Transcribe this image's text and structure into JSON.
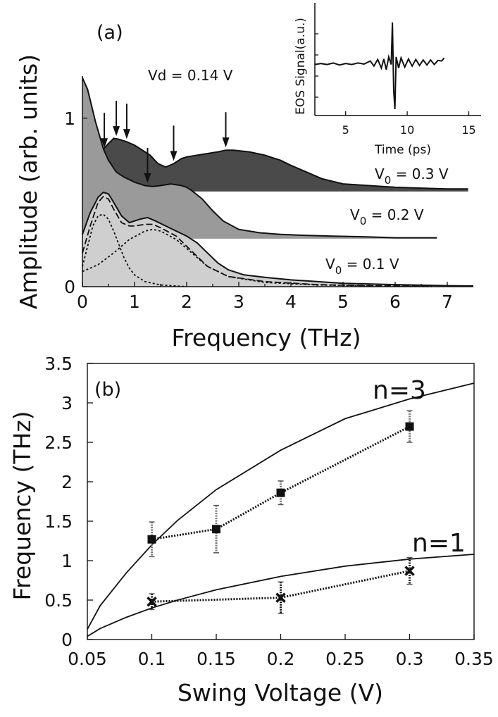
{
  "chart_data": [
    {
      "panel_label": "(a)",
      "type": "area",
      "xlabel": "Frequency (THz)",
      "ylabel": "Amplitude (arb. units)",
      "xlim": [
        0,
        7.5
      ],
      "ylim": [
        0,
        1.25
      ],
      "xticks": [
        "0",
        "1",
        "2",
        "3",
        "4",
        "5",
        "6",
        "7"
      ],
      "yticks": [
        "0",
        "1"
      ],
      "annotation": "Vd = 0.14 V",
      "series": [
        {
          "name": "V0 = 0.3 V",
          "label_parts": [
            "V",
            "0",
            " = 0.3 V"
          ],
          "baseline": 0.565,
          "color": "#4a4a4a",
          "x": [
            0,
            0.15,
            0.3,
            0.5,
            0.6,
            0.7,
            0.85,
            1.0,
            1.1,
            1.3,
            1.45,
            1.6,
            1.75,
            1.9,
            2.0,
            2.2,
            2.4,
            2.6,
            2.75,
            2.9,
            3.2,
            3.5,
            3.8,
            4.0,
            4.3,
            4.6,
            5.0,
            5.5,
            6.0,
            6.5,
            7.0,
            7.4
          ],
          "y": [
            0.77,
            0.75,
            0.78,
            0.85,
            0.88,
            0.875,
            0.86,
            0.84,
            0.82,
            0.78,
            0.73,
            0.71,
            0.73,
            0.76,
            0.77,
            0.78,
            0.79,
            0.8,
            0.81,
            0.81,
            0.8,
            0.78,
            0.75,
            0.72,
            0.68,
            0.64,
            0.61,
            0.6,
            0.59,
            0.585,
            0.58,
            0.58
          ]
        },
        {
          "name": "V0 = 0.2 V",
          "label_parts": [
            "V",
            "0",
            " = 0.2 V"
          ],
          "baseline": 0.285,
          "color": "#9a9a9a",
          "x": [
            0,
            0.1,
            0.25,
            0.4,
            0.5,
            0.65,
            0.8,
            1.0,
            1.2,
            1.35,
            1.5,
            1.7,
            1.9,
            2.0,
            2.1,
            2.3,
            2.5,
            2.7,
            3.0,
            3.4,
            3.8,
            4.2,
            4.8,
            5.5,
            6.0,
            6.5,
            6.8
          ],
          "y": [
            1.24,
            1.17,
            0.98,
            0.82,
            0.75,
            0.68,
            0.65,
            0.62,
            0.6,
            0.595,
            0.6,
            0.61,
            0.6,
            0.59,
            0.57,
            0.52,
            0.45,
            0.39,
            0.34,
            0.32,
            0.31,
            0.305,
            0.3,
            0.295,
            0.29,
            0.29,
            0.29
          ]
        },
        {
          "name": "V0 = 0.1 V",
          "label_parts": [
            "V",
            "0",
            " = 0.1 V"
          ],
          "baseline": 0.0,
          "color": "#cfcfcf",
          "x": [
            0,
            0.15,
            0.3,
            0.4,
            0.5,
            0.6,
            0.75,
            0.9,
            1.1,
            1.25,
            1.4,
            1.6,
            1.8,
            2.0,
            2.2,
            2.4,
            2.6,
            2.8,
            3.1,
            3.5,
            4.0,
            4.5,
            5.0,
            6.0,
            7.0,
            7.5
          ],
          "y": [
            0.31,
            0.44,
            0.53,
            0.56,
            0.55,
            0.5,
            0.42,
            0.38,
            0.4,
            0.41,
            0.39,
            0.36,
            0.33,
            0.3,
            0.26,
            0.2,
            0.14,
            0.1,
            0.07,
            0.055,
            0.04,
            0.03,
            0.02,
            0.012,
            0.006,
            0.004
          ]
        }
      ],
      "fit_curves": [
        {
          "name": "peak1",
          "style": "dotted",
          "x": [
            0,
            0.1,
            0.2,
            0.3,
            0.4,
            0.5,
            0.6,
            0.7,
            0.8,
            0.9,
            1.0,
            1.2,
            1.5,
            2.0
          ],
          "y": [
            0.12,
            0.24,
            0.36,
            0.42,
            0.43,
            0.4,
            0.33,
            0.25,
            0.17,
            0.11,
            0.07,
            0.03,
            0.01,
            0.0
          ]
        },
        {
          "name": "peak2",
          "style": "dotted",
          "x": [
            0,
            0.3,
            0.6,
            0.9,
            1.2,
            1.35,
            1.5,
            1.8,
            2.1,
            2.4,
            2.8,
            3.5,
            4.5,
            5.5,
            6.7
          ],
          "y": [
            0.09,
            0.13,
            0.2,
            0.28,
            0.33,
            0.34,
            0.33,
            0.28,
            0.2,
            0.12,
            0.06,
            0.025,
            0.01,
            0.004,
            0.0
          ]
        },
        {
          "name": "sum",
          "style": "dashed",
          "x": [
            0,
            0.15,
            0.3,
            0.4,
            0.5,
            0.6,
            0.75,
            0.9,
            1.0,
            1.2,
            1.35,
            1.5,
            1.8,
            2.1,
            2.4,
            2.8,
            3.5,
            4.5,
            5.5,
            6.7
          ],
          "y": [
            0.2,
            0.36,
            0.5,
            0.535,
            0.52,
            0.46,
            0.38,
            0.36,
            0.36,
            0.37,
            0.37,
            0.35,
            0.3,
            0.21,
            0.12,
            0.06,
            0.03,
            0.012,
            0.006,
            0.002
          ]
        }
      ],
      "arrows_x": [
        {
          "series": "V0 = 0.3 V",
          "x": [
            0.65,
            0.85,
            1.75,
            2.75
          ]
        },
        {
          "series": "V0 = 0.2 V",
          "x": [
            0.42,
            1.25
          ]
        }
      ],
      "inset": {
        "type": "line",
        "xlabel": "Time (ps)",
        "ylabel": "EOS  Signal(a.u.)",
        "xlim": [
          2.5,
          16
        ],
        "ylim": [
          -1,
          1
        ],
        "xticks": [
          "5",
          "10",
          "15"
        ],
        "x": [
          2.5,
          3.0,
          3.5,
          4.0,
          4.5,
          5.0,
          5.5,
          6.0,
          6.5,
          7.0,
          7.3,
          7.6,
          7.9,
          8.1,
          8.3,
          8.5,
          8.7,
          8.8,
          8.9,
          9.0,
          9.1,
          9.3,
          9.5,
          9.8,
          10.1,
          10.4,
          10.7,
          11.0,
          11.3,
          11.6,
          11.9,
          12.2,
          12.5,
          12.8,
          13.0
        ],
        "y": [
          -0.05,
          -0.03,
          -0.05,
          -0.02,
          -0.06,
          -0.03,
          -0.05,
          -0.02,
          -0.04,
          0.02,
          -0.08,
          0.05,
          -0.12,
          0.06,
          -0.15,
          0.1,
          -0.05,
          0.78,
          -0.55,
          -0.93,
          0.1,
          -0.12,
          0.08,
          -0.1,
          0.06,
          -0.08,
          0.05,
          -0.07,
          0.04,
          -0.06,
          0.04,
          -0.05,
          0.03,
          0.02,
          0.08
        ]
      }
    },
    {
      "panel_label": "(b)",
      "type": "scatter",
      "xlabel": "Swing Voltage (V)",
      "ylabel": "Frequency (THz)",
      "xlim": [
        0.05,
        0.35
      ],
      "ylim": [
        0,
        3.5
      ],
      "xticks": [
        "0.05",
        "0.1",
        "0.15",
        "0.2",
        "0.25",
        "0.3",
        "0.35"
      ],
      "yticks": [
        "0",
        "0.5",
        "1",
        "1.5",
        "2",
        "2.5",
        "3",
        "3.5"
      ],
      "series": [
        {
          "name": "n=3",
          "marker": "square",
          "x": [
            0.1,
            0.15,
            0.2,
            0.3
          ],
          "y": [
            1.27,
            1.4,
            1.86,
            2.7
          ],
          "err": [
            0.22,
            0.3,
            0.15,
            0.2
          ]
        },
        {
          "name": "n=1",
          "marker": "x",
          "x": [
            0.1,
            0.2,
            0.3
          ],
          "y": [
            0.48,
            0.53,
            0.87
          ],
          "err": [
            0.1,
            0.2,
            0.17
          ]
        }
      ],
      "theory_curves": [
        {
          "name": "n=3 theory",
          "x": [
            0.05,
            0.06,
            0.08,
            0.1,
            0.12,
            0.15,
            0.2,
            0.25,
            0.3,
            0.35
          ],
          "y": [
            0.13,
            0.43,
            0.84,
            1.2,
            1.51,
            1.9,
            2.4,
            2.8,
            3.05,
            3.25
          ]
        },
        {
          "name": "n=1 theory",
          "x": [
            0.05,
            0.06,
            0.08,
            0.1,
            0.12,
            0.15,
            0.2,
            0.25,
            0.3,
            0.35
          ],
          "y": [
            0.04,
            0.14,
            0.28,
            0.4,
            0.5,
            0.63,
            0.8,
            0.93,
            1.02,
            1.08
          ]
        }
      ]
    }
  ]
}
